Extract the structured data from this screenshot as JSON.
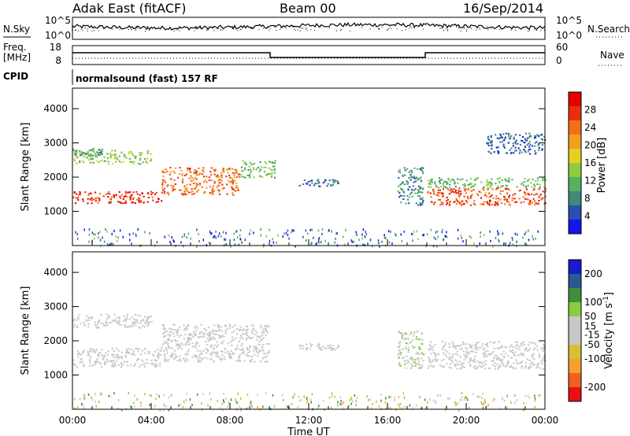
{
  "header": {
    "station": "Adak East (fitACF)",
    "beam": "Beam 00",
    "date": "16/Sep/2014"
  },
  "nsky_panel": {
    "left_label": "N.Sky",
    "right_label": "N.Search",
    "left_ticks": [
      "10^5",
      "10^0"
    ],
    "right_ticks": [
      "10^5",
      "10^0"
    ]
  },
  "freq_panel": {
    "left_label_1": "Freq.",
    "left_label_2": "[MHz]",
    "right_label": "Nave",
    "left_ticks": [
      "18",
      "8"
    ],
    "right_ticks": [
      "60",
      "0"
    ]
  },
  "cpid_panel": {
    "label": "CPID",
    "text": "normalsound (fast) 157 RF"
  },
  "colors": {
    "power_scale": [
      "#1515ee",
      "#2a4fb0",
      "#3f8a78",
      "#55b060",
      "#90cc40",
      "#e8d020",
      "#f2a020",
      "#f37018",
      "#e83010",
      "#e80000"
    ],
    "velocity_scale": [
      "#e81010",
      "#f06020",
      "#f5a030",
      "#d8c030",
      "#c8c8c8",
      "#c8c8c8",
      "#88cc44",
      "#3e8e3e",
      "#2a5a90",
      "#1a1ad0"
    ]
  },
  "chart_data": [
    {
      "type": "heatmap",
      "name": "power",
      "xlabel": "",
      "ylabel": "Slant Range [km]",
      "y_ticks": [
        "1000",
        "2000",
        "3000",
        "4000"
      ],
      "ylim": [
        0,
        4600
      ],
      "xlim": [
        0,
        24
      ],
      "x_ticks": [
        "00:00",
        "04:00",
        "08:00",
        "12:00",
        "16:00",
        "20:00",
        "00:00"
      ],
      "colorbar": {
        "label": "Power [dB]",
        "ticks": [
          "4",
          "8",
          "12",
          "16",
          "20",
          "24",
          "28"
        ],
        "range": [
          0,
          32
        ]
      },
      "echo_regions": [
        {
          "t_start": 0,
          "t_end": 4.5,
          "range_km": [
            1250,
            1600
          ],
          "value": 28
        },
        {
          "t_start": 4.5,
          "t_end": 8.5,
          "range_km": [
            1500,
            2300
          ],
          "value": 24
        },
        {
          "t_start": 0,
          "t_end": 4.0,
          "range_km": [
            2400,
            2800
          ],
          "value": 14
        },
        {
          "t_start": 0,
          "t_end": 1.5,
          "range_km": [
            2650,
            2850
          ],
          "value": 10
        },
        {
          "t_start": 8.5,
          "t_end": 10.3,
          "range_km": [
            2000,
            2500
          ],
          "value": 12
        },
        {
          "t_start": 11.5,
          "t_end": 13.5,
          "range_km": [
            1750,
            1950
          ],
          "value": 6
        },
        {
          "t_start": 16.5,
          "t_end": 17.8,
          "range_km": [
            1200,
            2300
          ],
          "value": 8
        },
        {
          "t_start": 18.0,
          "t_end": 24.0,
          "range_km": [
            1200,
            1700
          ],
          "value": 26
        },
        {
          "t_start": 18.0,
          "t_end": 24.0,
          "range_km": [
            1700,
            2000
          ],
          "value": 12
        },
        {
          "t_start": 21.0,
          "t_end": 24.0,
          "range_km": [
            2700,
            3300
          ],
          "value": 6
        }
      ]
    },
    {
      "type": "heatmap",
      "name": "velocity",
      "xlabel": "Time UT",
      "ylabel": "Slant Range [km]",
      "y_ticks": [
        "1000",
        "2000",
        "3000",
        "4000"
      ],
      "ylim": [
        0,
        4600
      ],
      "xlim": [
        0,
        24
      ],
      "x_ticks": [
        "00:00",
        "04:00",
        "08:00",
        "12:00",
        "16:00",
        "20:00",
        "00:00"
      ],
      "colorbar": {
        "label": "Velocity [m s^-1]",
        "ticks": [
          "-200",
          "-100",
          "-50",
          "-15",
          "15",
          "50",
          "100",
          "200"
        ],
        "range": [
          -250,
          250
        ]
      },
      "echo_regions": [
        {
          "t_start": 0,
          "t_end": 4.5,
          "range_km": [
            1250,
            1800
          ],
          "value": 0
        },
        {
          "t_start": 4.5,
          "t_end": 10.0,
          "range_km": [
            1400,
            2500
          ],
          "value": 0
        },
        {
          "t_start": 0,
          "t_end": 4.0,
          "range_km": [
            2400,
            2800
          ],
          "value": 0
        },
        {
          "t_start": 11.5,
          "t_end": 13.5,
          "range_km": [
            1750,
            1950
          ],
          "value": 20
        },
        {
          "t_start": 16.5,
          "t_end": 17.8,
          "range_km": [
            1200,
            2300
          ],
          "value": 40
        },
        {
          "t_start": 18.0,
          "t_end": 24.0,
          "range_km": [
            1200,
            2000
          ],
          "value": 0
        }
      ]
    }
  ]
}
